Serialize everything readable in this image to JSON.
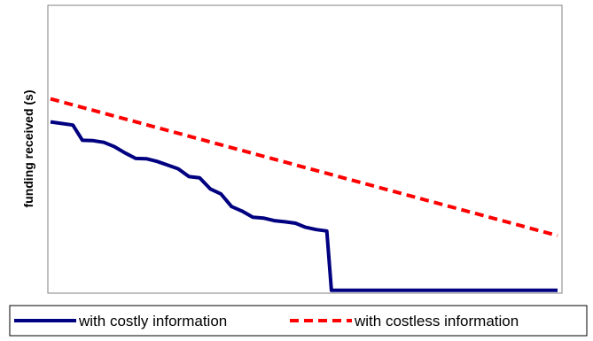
{
  "chart_data": {
    "type": "line",
    "title": "",
    "xlabel": "",
    "ylabel": "funding received (s)",
    "xlim": [
      0,
      100
    ],
    "ylim": [
      0,
      100
    ],
    "grid": false,
    "axis_ticks": false,
    "legend_placement": "bottom",
    "series": [
      {
        "name": "with costly information",
        "color": "#000080",
        "line_style": "solid",
        "x": [
          0,
          4.4,
          6.3,
          8.4,
          10.5,
          12.6,
          14.7,
          16.8,
          18.9,
          21.0,
          23.1,
          25.2,
          27.3,
          29.4,
          31.5,
          33.6,
          35.7,
          37.8,
          39.9,
          42.0,
          44.1,
          46.2,
          48.3,
          50.3,
          52.4,
          54.5,
          55.4,
          60.8,
          78.3,
          100
        ],
        "y": [
          59.5,
          58.4,
          53.1,
          53.0,
          52.4,
          50.9,
          48.7,
          46.8,
          46.7,
          45.8,
          44.5,
          43.2,
          40.5,
          40.1,
          36.2,
          34.5,
          30.1,
          28.5,
          26.4,
          26.1,
          25.2,
          24.8,
          24.3,
          22.9,
          22.1,
          21.6,
          1.0,
          1.0,
          1.0,
          1.0
        ]
      },
      {
        "name": "with costless information",
        "color": "#ff0000",
        "line_style": "dashed",
        "x": [
          0,
          100
        ],
        "y": [
          67.5,
          20.0
        ]
      }
    ]
  }
}
